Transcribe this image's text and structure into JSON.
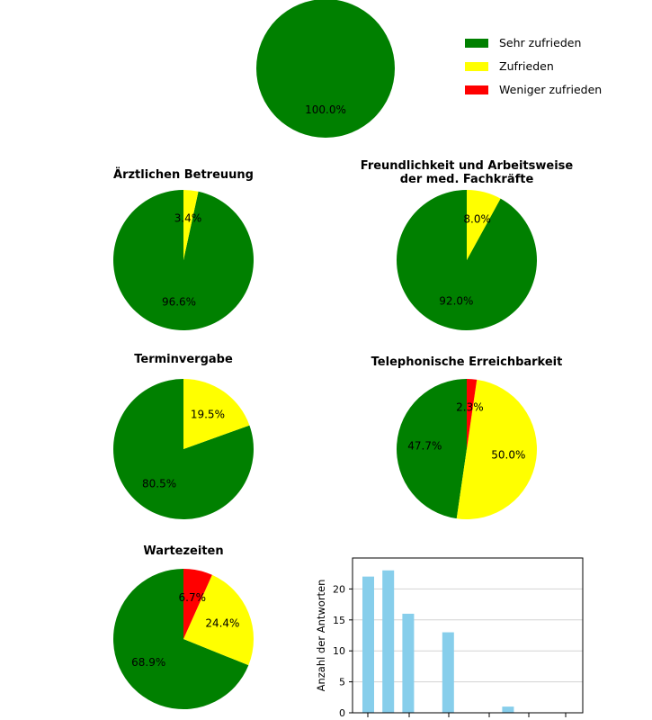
{
  "colors": {
    "sehr_zufrieden": "#008000",
    "zufrieden": "#ffff00",
    "weniger_zufrieden": "#ff0000",
    "bar": "#87ceeb",
    "grid": "#d3d3d3"
  },
  "legend": {
    "items": [
      {
        "label": "Sehr zufrieden",
        "color": "#008000"
      },
      {
        "label": "Zufrieden",
        "color": "#ffff00"
      },
      {
        "label": "Weniger zufrieden",
        "color": "#ff0000"
      }
    ]
  },
  "chart_data": [
    {
      "type": "pie",
      "title": "",
      "labels": [
        "Sehr zufrieden"
      ],
      "values": [
        100.0
      ],
      "value_labels": [
        "100.0%"
      ]
    },
    {
      "type": "pie",
      "title": "Ärztlichen Betreuung",
      "labels": [
        "Sehr zufrieden",
        "Zufrieden"
      ],
      "values": [
        96.6,
        3.4
      ],
      "value_labels": [
        "96.6%",
        "3.4%"
      ]
    },
    {
      "type": "pie",
      "title": "Freundlichkeit und Arbeitsweise\nder med. Fachkräfte",
      "title_lines": [
        "Freundlichkeit und Arbeitsweise",
        "der med. Fachkräfte"
      ],
      "labels": [
        "Sehr zufrieden",
        "Zufrieden"
      ],
      "values": [
        92.0,
        8.0
      ],
      "value_labels": [
        "92.0%",
        "8.0%"
      ]
    },
    {
      "type": "pie",
      "title": "Terminvergabe",
      "labels": [
        "Sehr zufrieden",
        "Zufrieden"
      ],
      "values": [
        80.5,
        19.5
      ],
      "value_labels": [
        "80.5%",
        "19.5%"
      ]
    },
    {
      "type": "pie",
      "title": "Telephonische Erreichbarkeit",
      "labels": [
        "Sehr zufrieden",
        "Zufrieden",
        "Weniger zufrieden"
      ],
      "values": [
        47.7,
        50.0,
        2.3
      ],
      "value_labels": [
        "47.7%",
        "50.0%",
        "2.3%"
      ]
    },
    {
      "type": "pie",
      "title": "Wartezeiten",
      "labels": [
        "Sehr zufrieden",
        "Zufrieden",
        "Weniger zufrieden"
      ],
      "values": [
        68.9,
        24.4,
        6.7
      ],
      "value_labels": [
        "68.9%",
        "24.4%",
        "6.7%"
      ]
    },
    {
      "type": "bar",
      "title": "",
      "xlabel": "",
      "ylabel": "Anzahl der Antworten",
      "values": [
        22,
        23,
        16,
        null,
        13,
        null,
        null,
        1,
        null,
        null
      ],
      "ylim": [
        0,
        25
      ],
      "yticks": [
        "0",
        "5",
        "10",
        "15",
        "20"
      ],
      "grid": true
    }
  ]
}
